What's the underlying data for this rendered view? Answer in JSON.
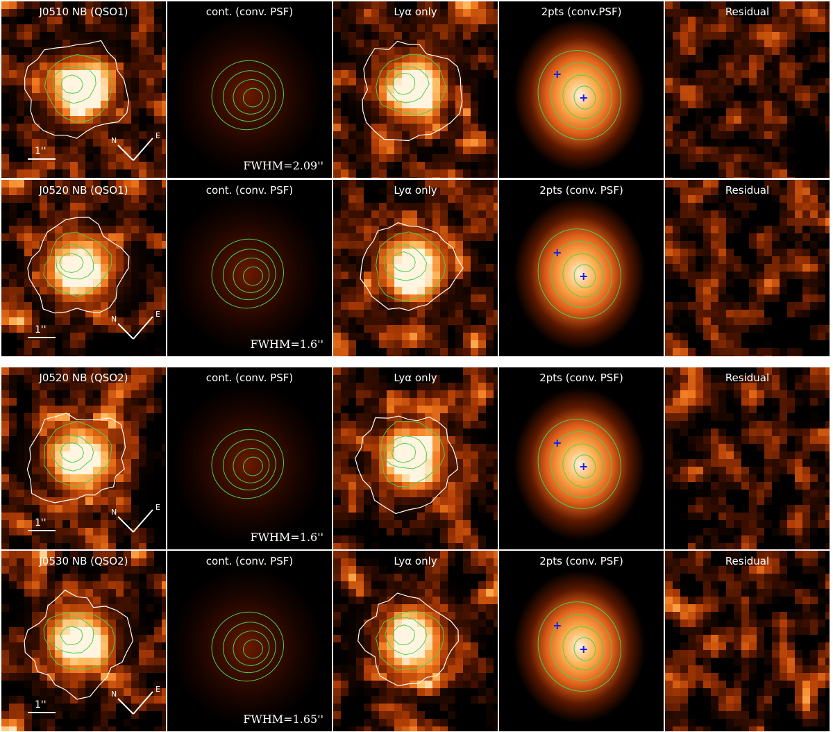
{
  "rows": [
    {
      "panels": [
        {
          "title": "J0510 NB (QSO1)",
          "type": "nb",
          "scale_label": "1''",
          "compass_n": "N",
          "compass_e": "E"
        },
        {
          "title": "cont. (conv. PSF)",
          "type": "psf",
          "fwhm": "FWHM=2.09''"
        },
        {
          "title": "Lyα only",
          "type": "lya"
        },
        {
          "title": "2pts (conv.PSF)",
          "type": "twopts"
        },
        {
          "title": "Residual",
          "type": "residual"
        }
      ]
    },
    {
      "panels": [
        {
          "title": "J0520 NB (QSO1)",
          "type": "nb",
          "scale_label": "1''",
          "compass_n": "N",
          "compass_e": "E"
        },
        {
          "title": "cont. (conv. PSF)",
          "type": "psf",
          "fwhm": "FWHM=1.6''"
        },
        {
          "title": "Lyα only",
          "type": "lya"
        },
        {
          "title": "2pts (conv. PSF)",
          "type": "twopts"
        },
        {
          "title": "Residual",
          "type": "residual"
        }
      ]
    },
    {
      "panels": [
        {
          "title": "J0520 NB (QSO2)",
          "type": "nb",
          "scale_label": "1''",
          "compass_n": "N",
          "compass_e": "E"
        },
        {
          "title": "cont. (conv. PSF)",
          "type": "psf",
          "fwhm": "FWHM=1.6''"
        },
        {
          "title": "Lyα only",
          "type": "lya"
        },
        {
          "title": "2pts (conv. PSF)",
          "type": "twopts"
        },
        {
          "title": "Residual",
          "type": "residual"
        }
      ]
    },
    {
      "panels": [
        {
          "title": "J0530 NB (QSO2)",
          "type": "nb",
          "scale_label": "1''",
          "compass_n": "N",
          "compass_e": "E"
        },
        {
          "title": "cont. (conv. PSF)",
          "type": "psf",
          "fwhm": "FWHM=1.65''"
        },
        {
          "title": "Lyα only",
          "type": "lya"
        },
        {
          "title": "2pts (conv. PSF)",
          "type": "twopts"
        },
        {
          "title": "Residual",
          "type": "residual"
        }
      ]
    }
  ],
  "colors": {
    "background": "#000000",
    "contour_inner": "#4cd04c",
    "contour_outer": "#ffffff",
    "marker": "#1a1aff",
    "text": "#ffffff"
  }
}
